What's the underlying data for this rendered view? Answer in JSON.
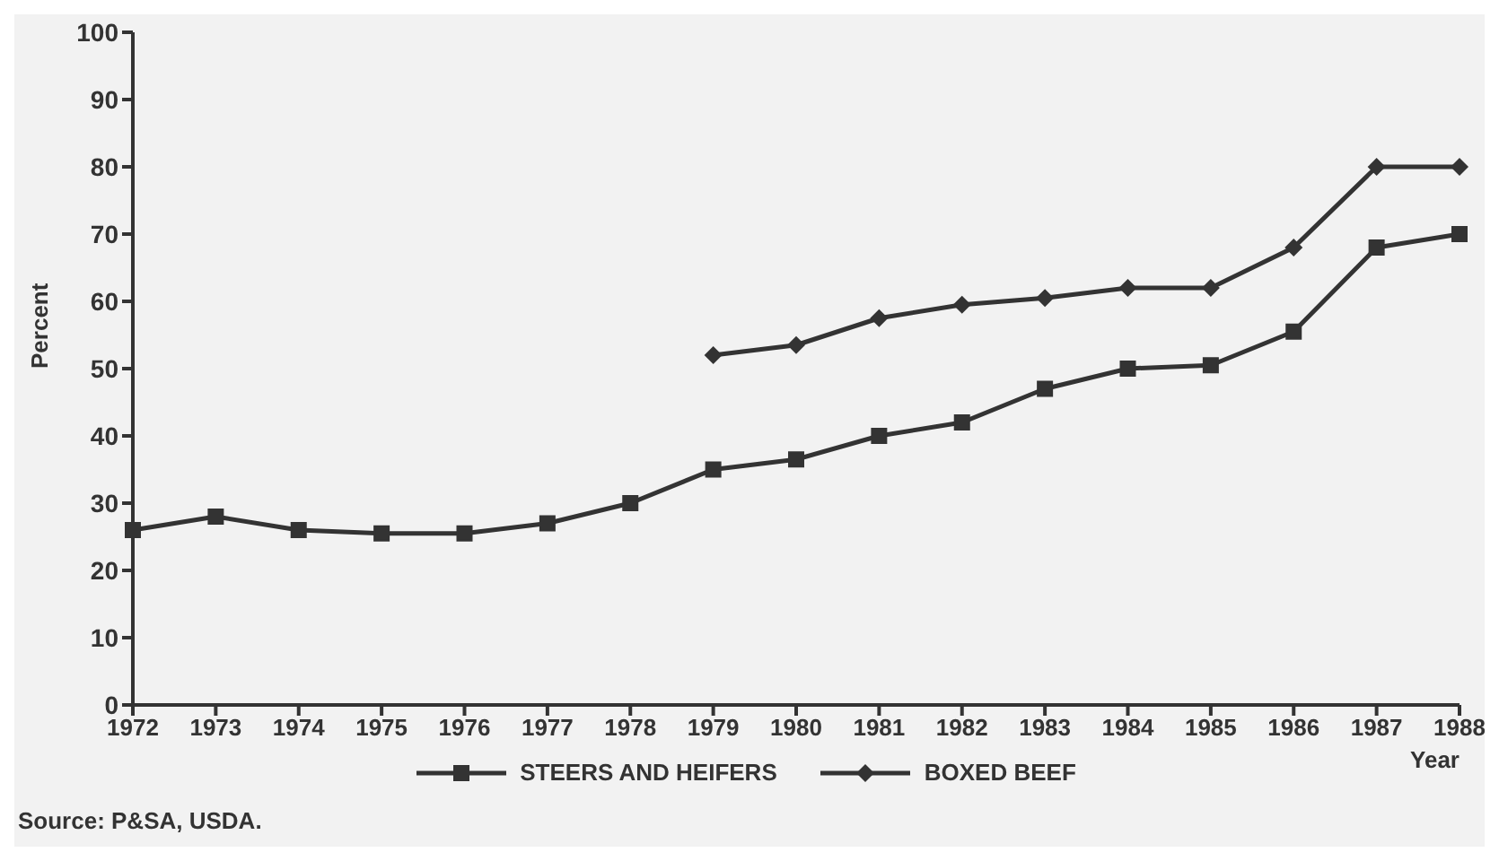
{
  "chart_data": {
    "type": "line",
    "ylabel": "Percent",
    "xlabel": "Year",
    "categories": [
      "1972",
      "1973",
      "1974",
      "1975",
      "1976",
      "1977",
      "1978",
      "1979",
      "1980",
      "1981",
      "1982",
      "1983",
      "1984",
      "1985",
      "1986",
      "1987",
      "1988"
    ],
    "series": [
      {
        "name": "STEERS AND HEIFERS",
        "color": "#333333",
        "marker": "square",
        "values": [
          26,
          28,
          26,
          25.5,
          25.5,
          27,
          30,
          35,
          36.5,
          40,
          42,
          47,
          50,
          50.5,
          55.5,
          68,
          70
        ]
      },
      {
        "name": "BOXED BEEF",
        "color": "#333333",
        "marker": "diamond",
        "values": [
          null,
          null,
          null,
          null,
          null,
          null,
          null,
          52,
          53.5,
          57.5,
          59.5,
          60.5,
          62,
          62,
          68,
          80,
          80
        ]
      }
    ],
    "ylim": [
      0,
      100
    ],
    "yticks": [
      0,
      10,
      20,
      30,
      40,
      50,
      60,
      70,
      80,
      90,
      100
    ],
    "grid": false,
    "legend": "bottom",
    "line_style": "solid",
    "annotations": [
      "Source: P&SA, USDA."
    ]
  }
}
